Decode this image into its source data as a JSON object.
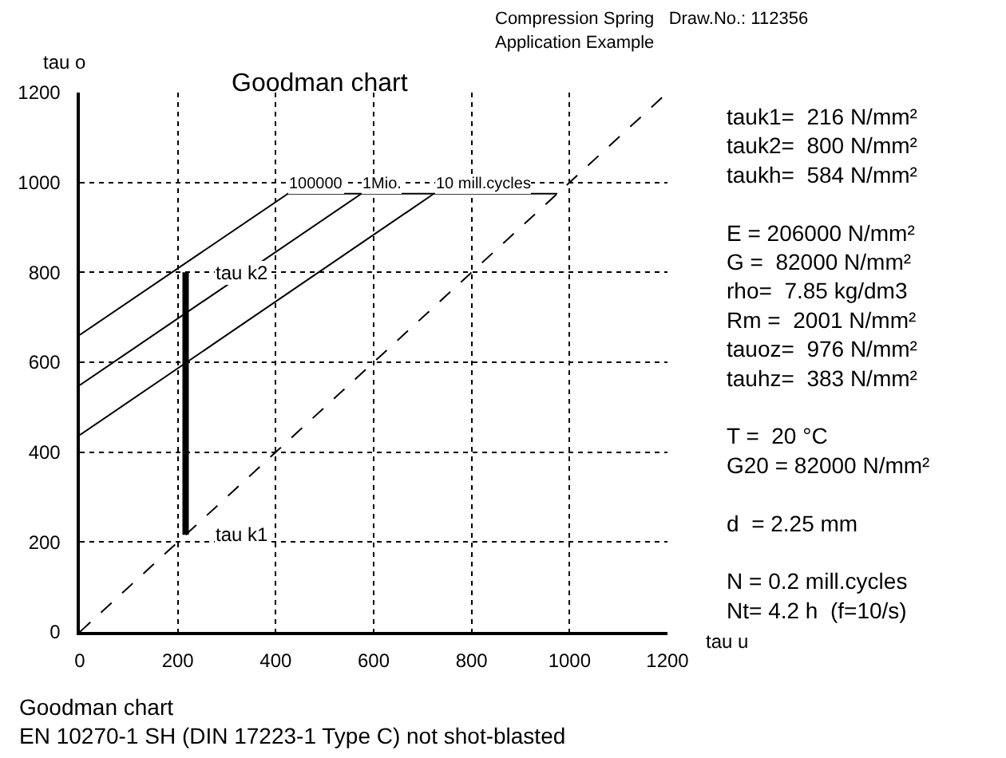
{
  "chart_data": {
    "type": "line",
    "title": "Goodman chart",
    "xlabel": "tau u",
    "ylabel": "tau o",
    "series": [
      {
        "x": [
          0,
          1200
        ],
        "values": [
          0,
          1200
        ],
        "color": "#000000",
        "line_style": "dashed"
      },
      {
        "x": [
          0,
          425,
          975
        ],
        "values": [
          661,
          975,
          975
        ],
        "color": "#000000"
      },
      {
        "x": [
          0,
          575
        ],
        "values": [
          549,
          975
        ],
        "color": "#000000"
      },
      {
        "x": [
          0,
          723
        ],
        "values": [
          438,
          975
        ],
        "color": "#000000"
      },
      {
        "x": [
          216,
          216
        ],
        "values": [
          216,
          800
        ],
        "color": "#000000"
      }
    ],
    "annotations": [
      "Compression Spring   Draw.No.: 112356",
      "Application Example",
      "tauk1=  216 N/mm²\ntauk2=  800 N/mm²\ntaukh=  584 N/mm²\n\nE = 206000 N/mm²\nG =  82000 N/mm²\nrho=  7.85 kg/dm3\nRm =  2001 N/mm²\ntauoz=  976 N/mm²\ntauhz=  383 N/mm²\n\nT =  20 °C\nG20 = 82000 N/mm²\n\nd  = 2.25 mm\n\nN = 0.2 mill.cycles\nNt= 4.2 h  (f=10/s)",
      "Goodman chart\nEN 10270-1 SH (DIN 17223-1 Type C) not shot-blasted",
      {
        "text": "tau k2",
        "x": 216,
        "y": 800
      },
      {
        "text": "tau k1",
        "x": 216,
        "y": 216
      },
      {
        "text": "100000",
        "x": 425,
        "y": 975
      },
      {
        "text": "1Mio.",
        "x": 575,
        "y": 975
      },
      {
        "text": "10 mill.cycles",
        "x": 723,
        "y": 975
      }
    ],
    "xlim": [
      0,
      1200
    ],
    "ylim": [
      0,
      1200
    ],
    "xticks": [
      0,
      200,
      400,
      600,
      800,
      1000,
      1200
    ],
    "yticks": [
      0,
      200,
      400,
      600,
      800,
      1000,
      1200
    ],
    "grid": true,
    "marker": "none"
  }
}
